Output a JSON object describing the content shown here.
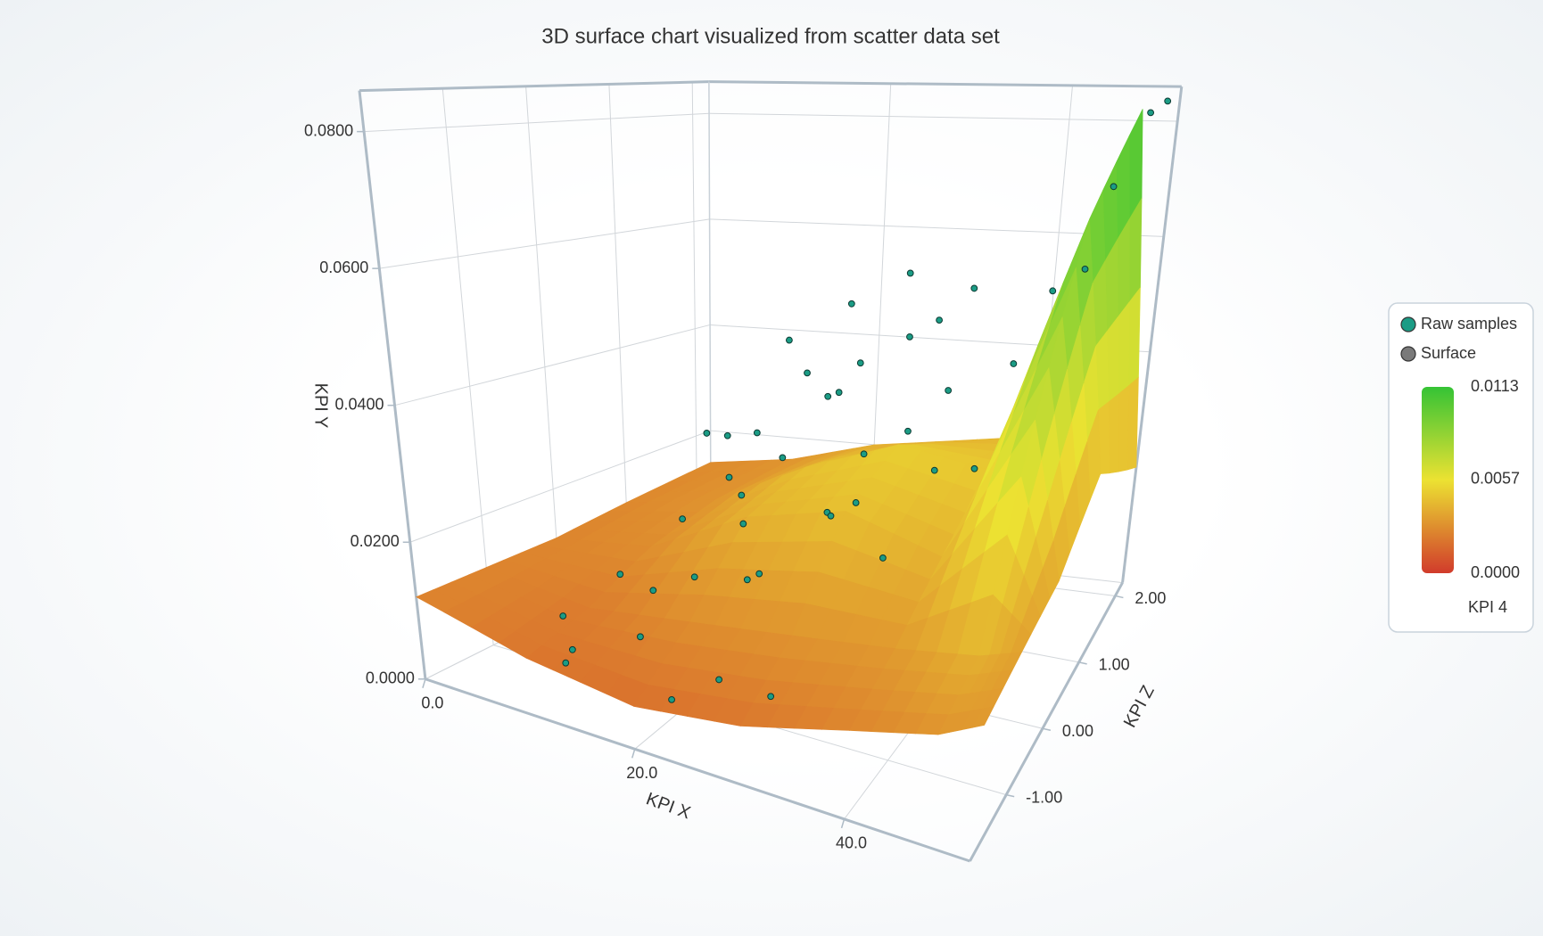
{
  "chart_data": {
    "type": "surface3d",
    "title": "3D surface chart visualized from scatter data set",
    "x_label": "KPI X",
    "y_label": "KPI Y",
    "z_label": "KPI Z",
    "xlim": [
      0,
      52
    ],
    "ylim": [
      0,
      0.086
    ],
    "zlim": [
      -2,
      2.2
    ],
    "xticks": [
      {
        "value": 0,
        "label": "0.0"
      },
      {
        "value": 20,
        "label": "20.0"
      },
      {
        "value": 40,
        "label": "40.0"
      }
    ],
    "yticks": [
      {
        "value": 0,
        "label": "0.0000"
      },
      {
        "value": 0.02,
        "label": "0.0200"
      },
      {
        "value": 0.04,
        "label": "0.0400"
      },
      {
        "value": 0.06,
        "label": "0.0600"
      },
      {
        "value": 0.08,
        "label": "0.0800"
      }
    ],
    "zticks": [
      {
        "value": -1,
        "label": "-1.00"
      },
      {
        "value": 0,
        "label": "0.00"
      },
      {
        "value": 1,
        "label": "1.00"
      },
      {
        "value": 2,
        "label": "2.00"
      }
    ],
    "grid": true,
    "legend": "right",
    "scatter": {
      "name": "Raw samples",
      "color": "#1b9c85",
      "x": [
        6,
        8,
        10,
        12,
        14,
        15,
        16,
        17,
        18,
        19,
        20,
        21,
        22,
        23,
        24,
        25,
        26,
        27,
        28,
        29,
        30,
        31,
        32,
        33,
        34,
        35,
        36,
        12,
        18,
        22,
        26,
        30,
        14,
        20,
        24,
        28,
        10,
        16,
        34,
        44,
        45,
        47,
        48,
        50,
        51
      ],
      "y": [
        0.006,
        0.01,
        0.004,
        0.018,
        0.012,
        0.024,
        0.03,
        0.014,
        0.045,
        0.02,
        0.028,
        0.035,
        0.05,
        0.016,
        0.038,
        0.042,
        0.022,
        0.055,
        0.03,
        0.046,
        0.026,
        0.048,
        0.034,
        0.052,
        0.02,
        0.04,
        0.03,
        0.008,
        0.012,
        0.006,
        0.01,
        0.008,
        0.032,
        0.026,
        0.018,
        0.024,
        0.026,
        0.036,
        0.02,
        0.05,
        0.058,
        0.06,
        0.072,
        0.083,
        0.084
      ],
      "z": [
        -0.8,
        -0.2,
        -1.4,
        0.2,
        -0.6,
        0.5,
        0.8,
        -0.4,
        1.0,
        0.1,
        0.6,
        1.2,
        1.4,
        -0.3,
        0.9,
        1.1,
        0.4,
        1.6,
        0.7,
        1.3,
        0.2,
        1.5,
        0.8,
        1.8,
        0.0,
        1.0,
        0.6,
        -1.6,
        -1.5,
        -1.7,
        -1.6,
        -1.4,
        0.3,
        -0.1,
        -0.7,
        0.1,
        1.2,
        1.6,
        1.9,
        0.4,
        1.0,
        1.3,
        1.6,
        1.9,
        2.1
      ]
    },
    "surface": {
      "name": "Surface",
      "color": "#7a7a7a",
      "x": [
        0,
        10,
        20,
        30,
        40,
        48,
        52
      ],
      "z": [
        -2,
        -1,
        0,
        1,
        2.2
      ],
      "y": [
        [
          0.012,
          0.008,
          0.006,
          0.008,
          0.012,
          0.015,
          0.018
        ],
        [
          0.012,
          0.01,
          0.012,
          0.014,
          0.016,
          0.018,
          0.02
        ],
        [
          0.012,
          0.014,
          0.022,
          0.026,
          0.022,
          0.045,
          0.022
        ],
        [
          0.013,
          0.016,
          0.024,
          0.03,
          0.028,
          0.07,
          0.03
        ],
        [
          0.014,
          0.016,
          0.02,
          0.022,
          0.024,
          0.082,
          0.02
        ]
      ],
      "kpi4": [
        [
          0.0025,
          0.002,
          0.0018,
          0.002,
          0.0025,
          0.003,
          0.0032
        ],
        [
          0.0025,
          0.0022,
          0.0028,
          0.003,
          0.0032,
          0.004,
          0.0034
        ],
        [
          0.0025,
          0.0028,
          0.004,
          0.0045,
          0.004,
          0.007,
          0.0036
        ],
        [
          0.0026,
          0.003,
          0.0045,
          0.005,
          0.0048,
          0.01,
          0.004
        ],
        [
          0.0027,
          0.003,
          0.0038,
          0.004,
          0.0042,
          0.0113,
          0.0036
        ]
      ]
    },
    "colorbar": {
      "title": "KPI 4",
      "clim": [
        0,
        0.0113
      ],
      "colors": [
        "#d13b2b",
        "#ece232",
        "#35c335"
      ],
      "ticks": [
        {
          "value": 0,
          "label": "0.0000"
        },
        0.0057,
        0.0113
      ]
    }
  }
}
